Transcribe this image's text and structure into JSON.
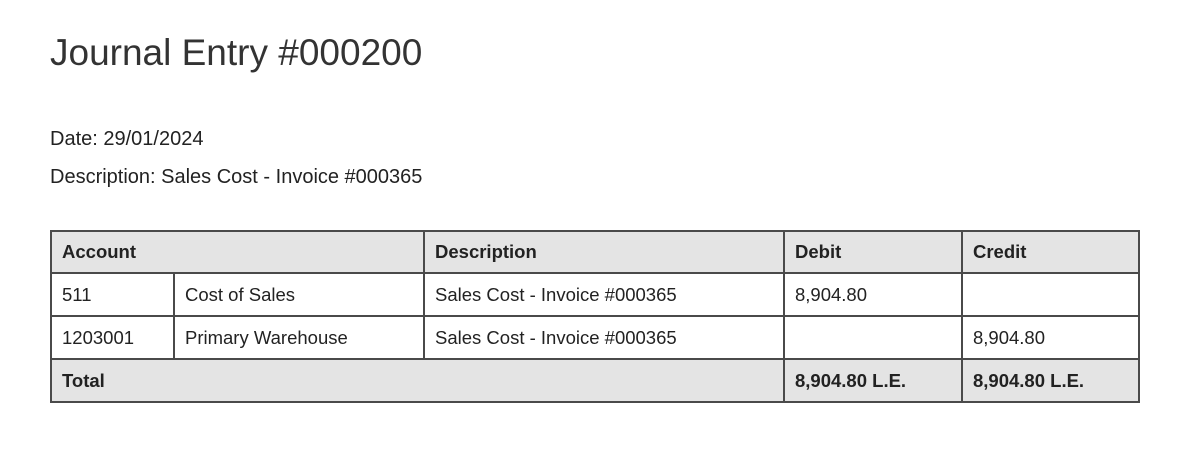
{
  "title": "Journal Entry #000200",
  "date_label": "Date: 29/01/2024",
  "description_label": "Description: Sales Cost - Invoice #000365",
  "table": {
    "headers": {
      "account": "Account",
      "description": "Description",
      "debit": "Debit",
      "credit": "Credit"
    },
    "rows": [
      {
        "code": "511",
        "name": "Cost of Sales",
        "description": "Sales Cost - Invoice #000365",
        "debit": "8,904.80",
        "credit": ""
      },
      {
        "code": "1203001",
        "name": "Primary Warehouse",
        "description": "Sales Cost - Invoice #000365",
        "debit": "",
        "credit": "8,904.80"
      }
    ],
    "total": {
      "label": "Total",
      "debit": "8,904.80 L.E.",
      "credit": "8,904.80 L.E."
    }
  }
}
